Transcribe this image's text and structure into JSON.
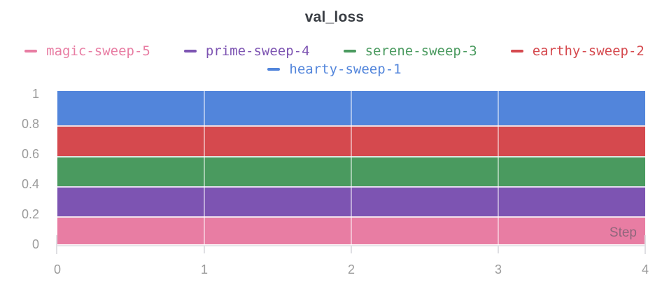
{
  "chart": {
    "title": "val_loss"
  },
  "chart_data": {
    "type": "area",
    "title": "val_loss",
    "xlabel": "Step",
    "ylabel": "",
    "xlim": [
      0,
      4
    ],
    "ylim": [
      0,
      1.02
    ],
    "x_ticks": [
      0,
      1,
      2,
      3,
      4
    ],
    "y_ticks": [
      {
        "label": "0",
        "value": 0
      },
      {
        "label": "0.2",
        "value": 0.2
      },
      {
        "label": "0.4",
        "value": 0.4
      },
      {
        "label": "0.6",
        "value": 0.6
      },
      {
        "label": "0.8",
        "value": 0.8
      },
      {
        "label": "1",
        "value": 1
      }
    ],
    "grid": true,
    "legend_position": "top",
    "x": [
      0,
      1,
      2,
      3,
      4
    ],
    "series": [
      {
        "name": "magic-sweep-5",
        "color": "#E87DA3",
        "value": 0.09,
        "band": [
          0.0,
          0.185
        ],
        "values": [
          0.09,
          0.09,
          0.09,
          0.09,
          0.09
        ]
      },
      {
        "name": "prime-sweep-4",
        "color": "#7D54B2",
        "value": 0.29,
        "band": [
          0.185,
          0.385
        ],
        "values": [
          0.29,
          0.29,
          0.29,
          0.29,
          0.29
        ]
      },
      {
        "name": "serene-sweep-3",
        "color": "#4A9A5F",
        "value": 0.49,
        "band": [
          0.385,
          0.585
        ],
        "values": [
          0.49,
          0.49,
          0.49,
          0.49,
          0.49
        ]
      },
      {
        "name": "earthy-sweep-2",
        "color": "#D5494E",
        "value": 0.69,
        "band": [
          0.585,
          0.79
        ],
        "values": [
          0.69,
          0.69,
          0.69,
          0.69,
          0.69
        ]
      },
      {
        "name": "hearty-sweep-1",
        "color": "#5285DB",
        "value": 0.9,
        "band": [
          0.79,
          1.018
        ],
        "values": [
          0.9,
          0.9,
          0.9,
          0.9,
          0.9
        ]
      }
    ],
    "legend_rows": [
      [
        0,
        1,
        2,
        3
      ],
      [
        4
      ]
    ]
  }
}
